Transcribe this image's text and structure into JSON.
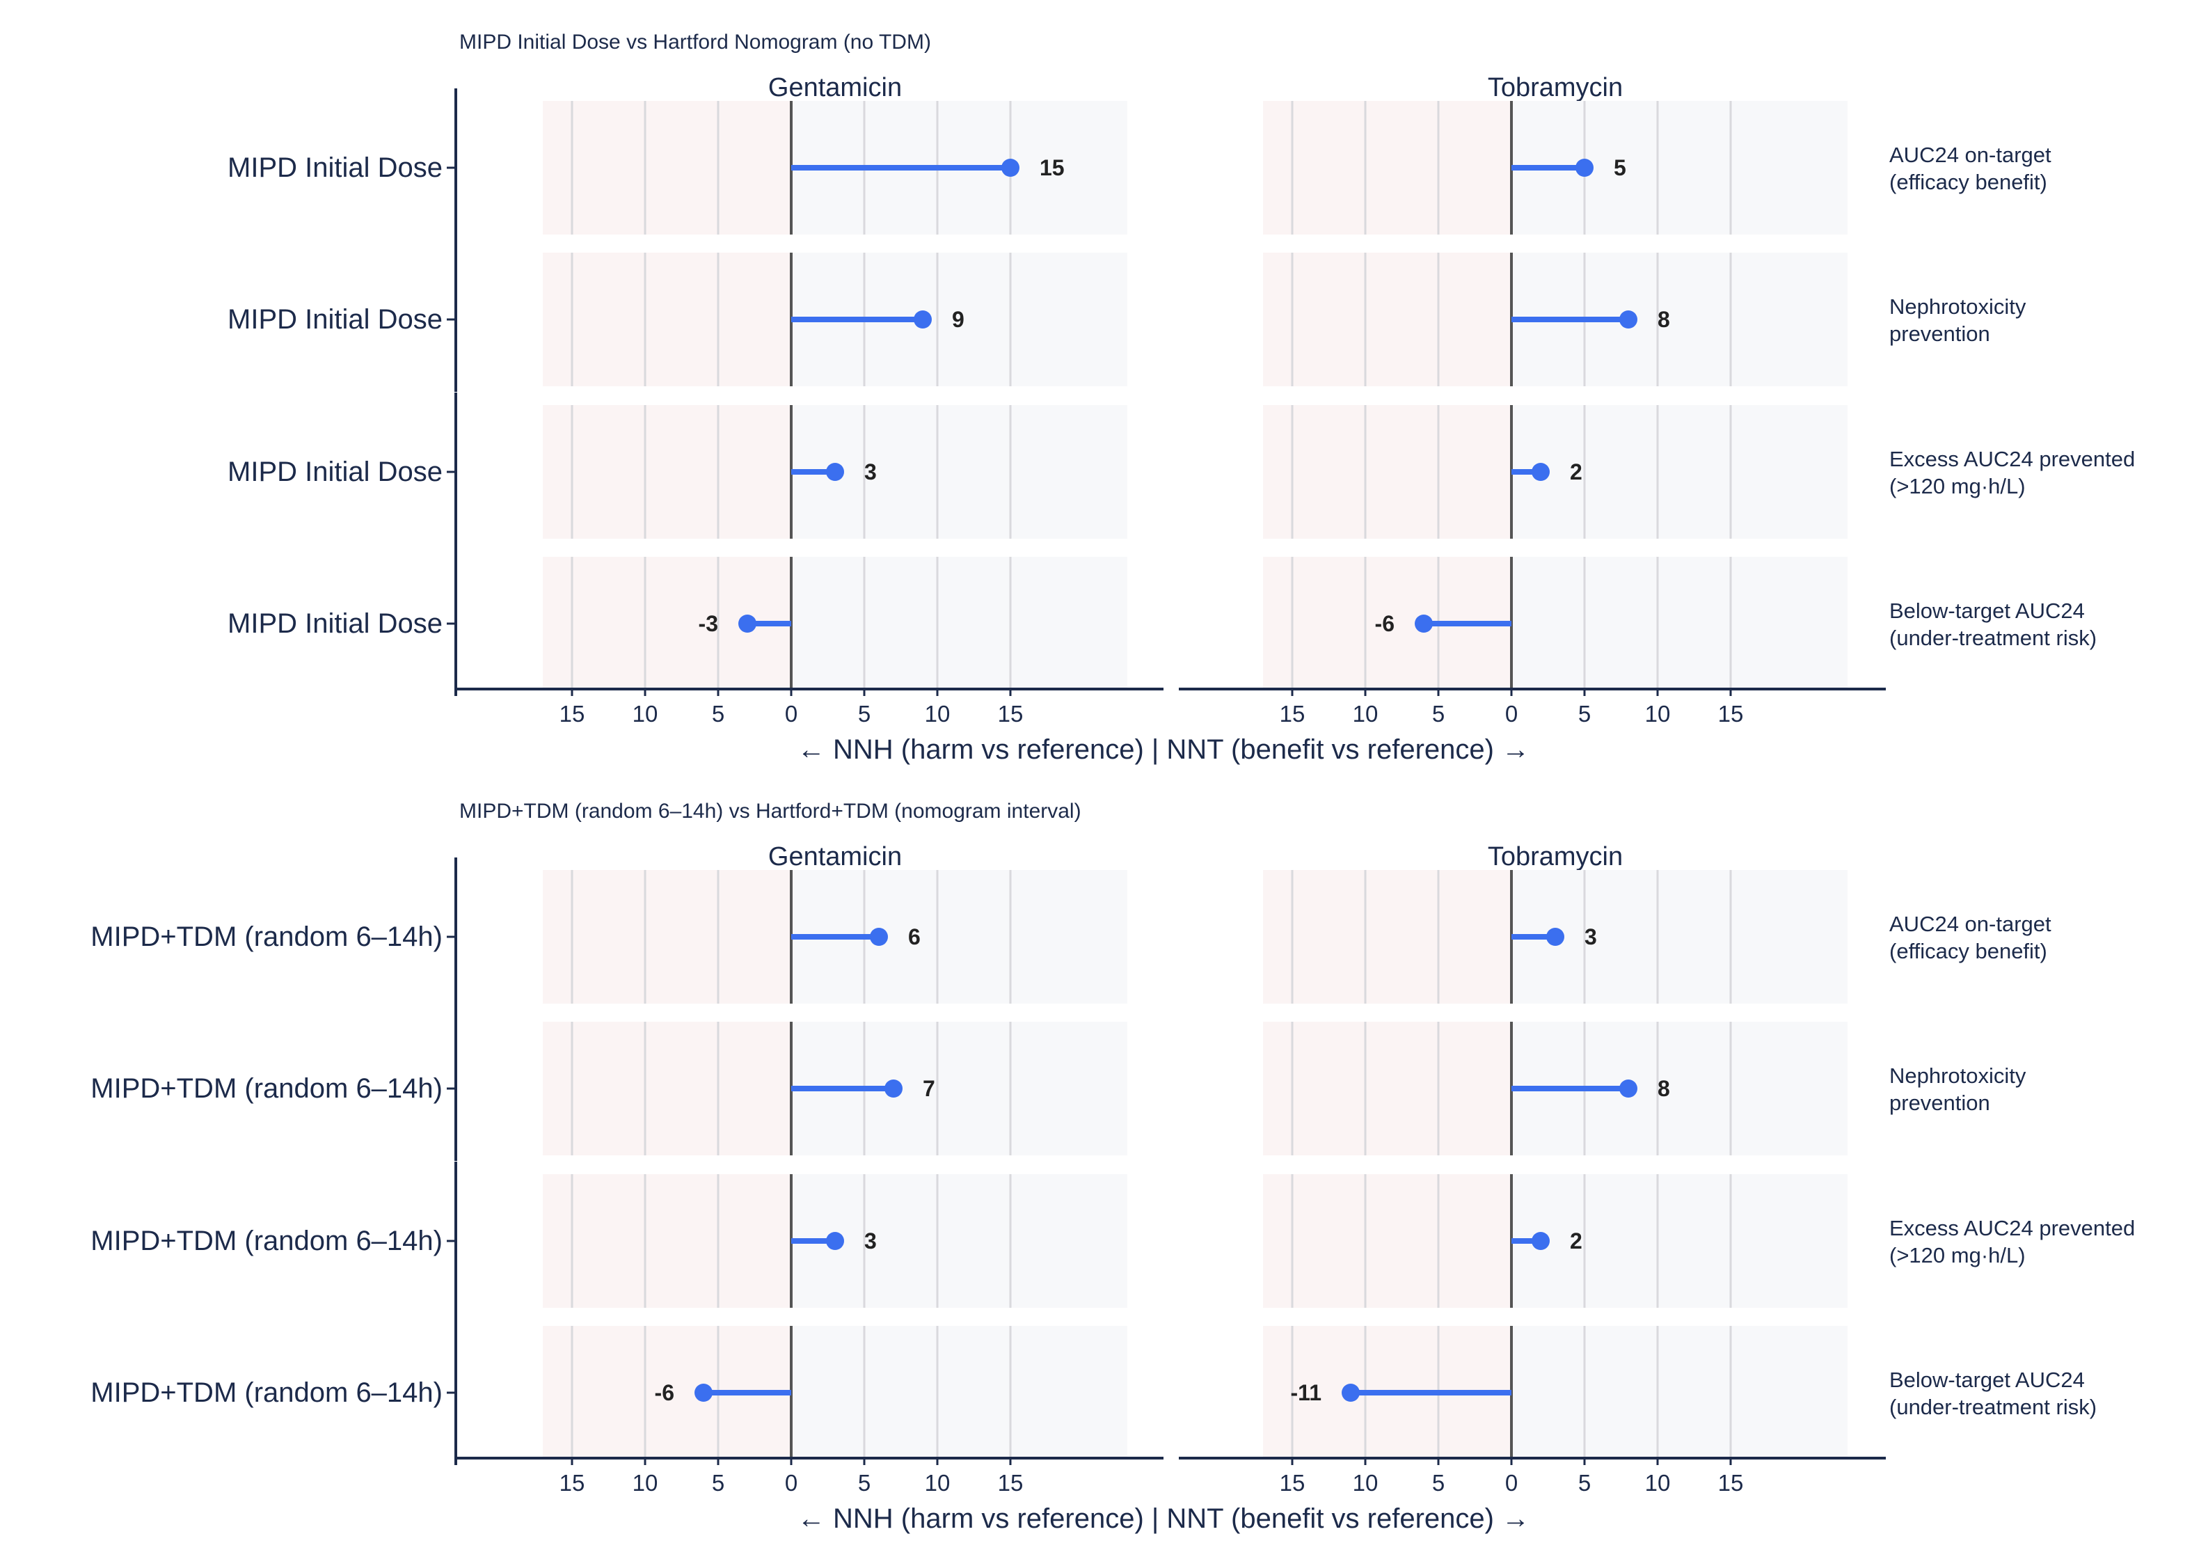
{
  "chart_data": [
    {
      "type": "lollipop",
      "title": "MIPD Initial Dose vs Hartford Nomogram (no TDM)",
      "facets": [
        "Gentamicin",
        "Tobramycin"
      ],
      "row_label": "MIPD Initial Dose",
      "outcomes": [
        "AUC24 on-target\n(efficacy benefit)",
        "Nephrotoxicity\nprevention",
        "Excess AUC24 prevented\n(>120 mg·h/L)",
        "Below-target AUC24\n(under-treatment risk)"
      ],
      "series": [
        {
          "name": "Gentamicin",
          "values": [
            15,
            9,
            3,
            -3
          ]
        },
        {
          "name": "Tobramycin",
          "values": [
            5,
            8,
            2,
            -6
          ]
        }
      ],
      "xticks": [
        -15,
        -10,
        -5,
        0,
        5,
        10,
        15
      ],
      "xtick_labels": [
        "15",
        "10",
        "5",
        "0",
        "5",
        "10",
        "15"
      ],
      "xlim": [
        -17,
        23
      ],
      "xlabel": "← NNH (harm vs reference)    |    NNT (benefit vs reference) →"
    },
    {
      "type": "lollipop",
      "title": "MIPD+TDM (random 6–14h) vs Hartford+TDM (nomogram interval)",
      "facets": [
        "Gentamicin",
        "Tobramycin"
      ],
      "row_label": "MIPD+TDM (random 6–14h)",
      "outcomes": [
        "AUC24 on-target\n(efficacy benefit)",
        "Nephrotoxicity\nprevention",
        "Excess AUC24 prevented\n(>120 mg·h/L)",
        "Below-target AUC24\n(under-treatment risk)"
      ],
      "series": [
        {
          "name": "Gentamicin",
          "values": [
            6,
            7,
            3,
            -6
          ]
        },
        {
          "name": "Tobramycin",
          "values": [
            3,
            8,
            2,
            -11
          ]
        }
      ],
      "xticks": [
        -15,
        -10,
        -5,
        0,
        5,
        10,
        15
      ],
      "xtick_labels": [
        "15",
        "10",
        "5",
        "0",
        "5",
        "10",
        "15"
      ],
      "xlim": [
        -17,
        23
      ],
      "xlabel": "← NNH (harm vs reference)    |    NNT (benefit vs reference) →"
    }
  ],
  "colors": {
    "point": "#3b6fef",
    "text": "#1c2a4a",
    "axis": "#1c2a4a",
    "harm_bg": "#fbf4f4",
    "benefit_bg": "#f7f8fa",
    "grid": "#d9d9dd",
    "zero_line": "#555555",
    "value_label": "#222222"
  }
}
